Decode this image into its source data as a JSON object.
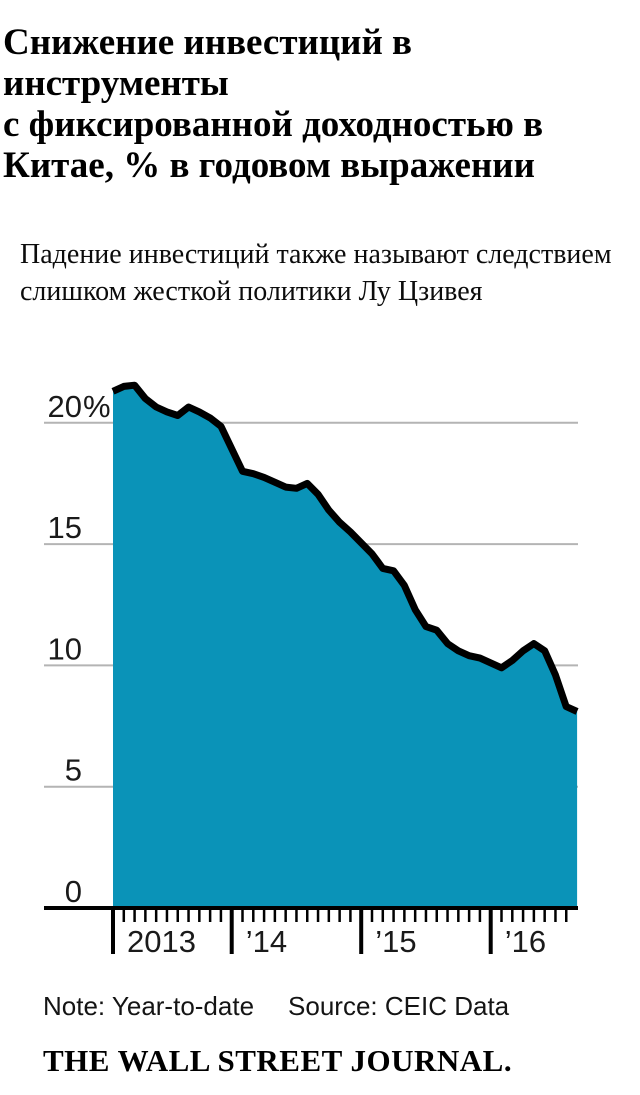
{
  "header": {
    "title_lines": [
      "Снижение инвестиций в инструменты",
      "с фиксированной доходностью в",
      "Китае, % в годовом выражении"
    ],
    "subtitle_lines": [
      "Падение инвестиций также называют следствием",
      "слишком жесткой политики Лу Цзивея"
    ]
  },
  "chart_data": {
    "type": "area",
    "title": "Снижение инвестиций в инструменты с фиксированной доходностью в Китае, % в годовом выражении",
    "xlabel": "",
    "ylabel": "",
    "unit": "%",
    "grid": true,
    "legend": "none",
    "ylim": [
      0,
      22
    ],
    "xlim_years": [
      2013.083,
      2016.667
    ],
    "x_minor_tick_interval_months": 1,
    "y_ticks": [
      {
        "label": "20%",
        "value": 20
      },
      {
        "label": "15",
        "value": 15
      },
      {
        "label": "10",
        "value": 10
      },
      {
        "label": "5",
        "value": 5
      },
      {
        "label": "0",
        "value": 0
      }
    ],
    "x_ticks": [
      {
        "label": "2013",
        "year": 2013
      },
      {
        "label": "’14",
        "year": 2014
      },
      {
        "label": "’15",
        "year": 2015
      },
      {
        "label": "’16",
        "year": 2016
      }
    ],
    "points": [
      {
        "t": 2013.083,
        "v": 21.3
      },
      {
        "t": 2013.167,
        "v": 21.5
      },
      {
        "t": 2013.25,
        "v": 21.55
      },
      {
        "t": 2013.333,
        "v": 21.0
      },
      {
        "t": 2013.417,
        "v": 20.65
      },
      {
        "t": 2013.5,
        "v": 20.45
      },
      {
        "t": 2013.583,
        "v": 20.3
      },
      {
        "t": 2013.667,
        "v": 20.65
      },
      {
        "t": 2013.75,
        "v": 20.45
      },
      {
        "t": 2013.833,
        "v": 20.2
      },
      {
        "t": 2013.917,
        "v": 19.85
      },
      {
        "t": 2014.083,
        "v": 18.0
      },
      {
        "t": 2014.167,
        "v": 17.9
      },
      {
        "t": 2014.25,
        "v": 17.75
      },
      {
        "t": 2014.333,
        "v": 17.55
      },
      {
        "t": 2014.417,
        "v": 17.35
      },
      {
        "t": 2014.5,
        "v": 17.3
      },
      {
        "t": 2014.583,
        "v": 17.5
      },
      {
        "t": 2014.667,
        "v": 17.05
      },
      {
        "t": 2014.75,
        "v": 16.4
      },
      {
        "t": 2014.833,
        "v": 15.9
      },
      {
        "t": 2014.917,
        "v": 15.5
      },
      {
        "t": 2015.083,
        "v": 14.6
      },
      {
        "t": 2015.167,
        "v": 14.0
      },
      {
        "t": 2015.25,
        "v": 13.9
      },
      {
        "t": 2015.333,
        "v": 13.3
      },
      {
        "t": 2015.417,
        "v": 12.3
      },
      {
        "t": 2015.5,
        "v": 11.6
      },
      {
        "t": 2015.583,
        "v": 11.45
      },
      {
        "t": 2015.667,
        "v": 10.9
      },
      {
        "t": 2015.75,
        "v": 10.6
      },
      {
        "t": 2015.833,
        "v": 10.4
      },
      {
        "t": 2015.917,
        "v": 10.3
      },
      {
        "t": 2016.083,
        "v": 9.9
      },
      {
        "t": 2016.167,
        "v": 10.2
      },
      {
        "t": 2016.25,
        "v": 10.6
      },
      {
        "t": 2016.333,
        "v": 10.9
      },
      {
        "t": 2016.417,
        "v": 10.6
      },
      {
        "t": 2016.5,
        "v": 9.6
      },
      {
        "t": 2016.583,
        "v": 8.3
      },
      {
        "t": 2016.667,
        "v": 8.1
      }
    ]
  },
  "footer": {
    "note": "Note: Year-to-date",
    "source": "Source: CEIC Data",
    "brand": "THE WALL STREET JOURNAL."
  },
  "colors": {
    "fill": "#0a93b8",
    "line": "#000000",
    "grid": "#b4b4b4",
    "text": "#1a1a1a"
  }
}
